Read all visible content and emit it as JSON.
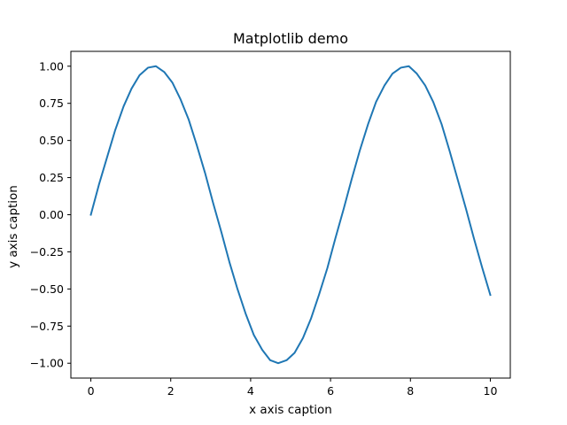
{
  "chart_data": {
    "type": "line",
    "title": "Matplotlib demo",
    "xlabel": "x axis caption",
    "ylabel": "y axis caption",
    "xlim": [
      -0.5,
      10.5
    ],
    "ylim": [
      -1.1,
      1.1
    ],
    "grid": false,
    "line_color": "#1f77b4",
    "xticks": [
      0,
      2,
      4,
      6,
      8,
      10
    ],
    "xtick_labels": [
      "0",
      "2",
      "4",
      "6",
      "8",
      "10"
    ],
    "yticks": [
      -1.0,
      -0.75,
      -0.5,
      -0.25,
      0.0,
      0.25,
      0.5,
      0.75,
      1.0
    ],
    "ytick_labels": [
      "−1.00",
      "−0.75",
      "−0.50",
      "−0.25",
      "0.00",
      "0.25",
      "0.50",
      "0.75",
      "1.00"
    ],
    "series": [
      {
        "x": [
          0.0,
          0.2,
          0.41,
          0.61,
          0.82,
          1.02,
          1.22,
          1.43,
          1.63,
          1.84,
          2.04,
          2.24,
          2.45,
          2.65,
          2.86,
          3.06,
          3.27,
          3.47,
          3.67,
          3.88,
          4.08,
          4.29,
          4.49,
          4.69,
          4.9,
          5.1,
          5.31,
          5.51,
          5.71,
          5.92,
          6.12,
          6.33,
          6.53,
          6.73,
          6.94,
          7.14,
          7.35,
          7.55,
          7.76,
          7.96,
          8.16,
          8.37,
          8.57,
          8.78,
          8.98,
          9.18,
          9.39,
          9.59,
          9.8,
          10.0
        ],
        "y": [
          0.0,
          0.2,
          0.39,
          0.57,
          0.73,
          0.85,
          0.94,
          0.99,
          1.0,
          0.96,
          0.89,
          0.78,
          0.64,
          0.47,
          0.28,
          0.08,
          -0.12,
          -0.32,
          -0.5,
          -0.67,
          -0.81,
          -0.91,
          -0.98,
          -1.0,
          -0.98,
          -0.93,
          -0.83,
          -0.7,
          -0.54,
          -0.36,
          -0.16,
          0.04,
          0.24,
          0.43,
          0.61,
          0.76,
          0.87,
          0.95,
          0.99,
          1.0,
          0.95,
          0.87,
          0.76,
          0.61,
          0.43,
          0.24,
          0.04,
          -0.16,
          -0.36,
          -0.54
        ]
      }
    ]
  }
}
